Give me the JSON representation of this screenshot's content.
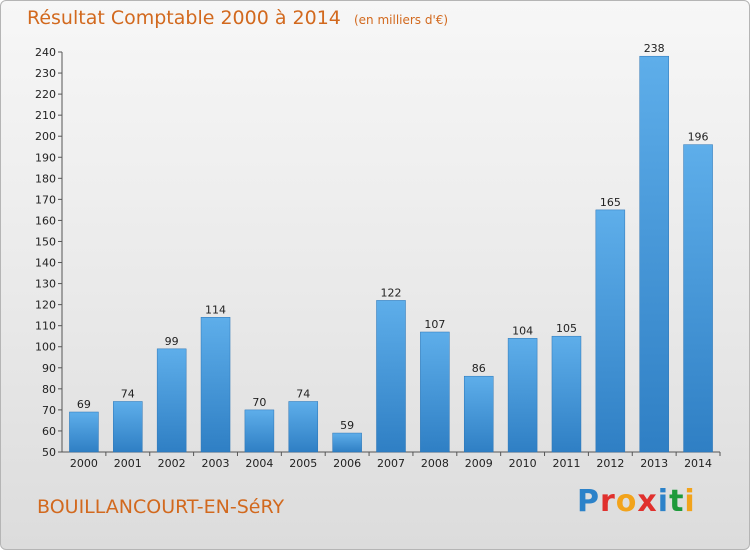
{
  "chart_data": {
    "type": "bar",
    "title": "Résultat Comptable 2000 à 2014",
    "subtitle": "(en milliers d'€)",
    "categories": [
      "2000",
      "2001",
      "2002",
      "2003",
      "2004",
      "2005",
      "2006",
      "2007",
      "2008",
      "2009",
      "2010",
      "2011",
      "2012",
      "2013",
      "2014"
    ],
    "values": [
      69,
      74,
      99,
      114,
      70,
      74,
      59,
      122,
      107,
      86,
      104,
      105,
      165,
      238,
      196
    ],
    "ylim": [
      50,
      240
    ],
    "ystep": 10,
    "xlabel": "",
    "ylabel": "",
    "grid": false,
    "bar_color": "#3b8fd6",
    "bar_color_light": "#5eaeea"
  },
  "footer": {
    "commune": "BOUILLANCOURT-EN-SéRY",
    "logo_text": "Proxiti",
    "logo_colors": [
      "#2c82c9",
      "#e0302d",
      "#f2a31b",
      "#e0302d",
      "#2c82c9",
      "#1e9a3b",
      "#f2a31b"
    ]
  },
  "colors": {
    "title": "#d2691e"
  }
}
